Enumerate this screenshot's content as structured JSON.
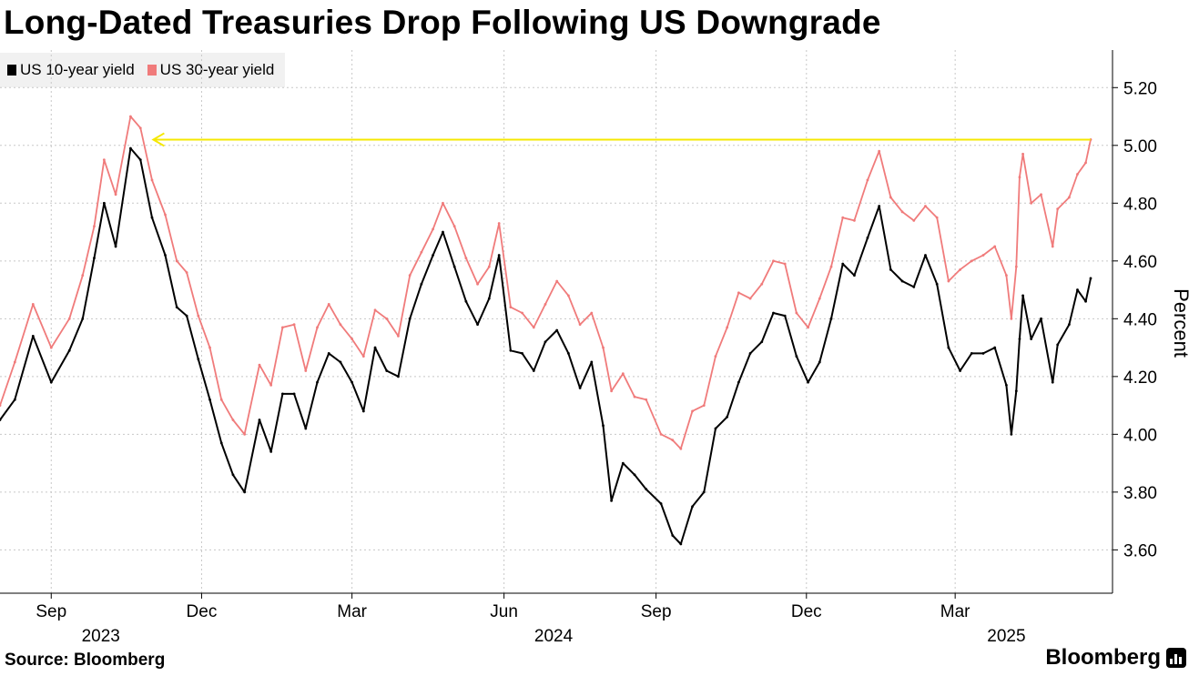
{
  "title": "Long-Dated Treasuries Drop Following US Downgrade",
  "source": "Source: Bloomberg",
  "brand": "Bloomberg",
  "colors": {
    "series_10y": "#000000",
    "series_30y": "#f07b7b",
    "reference_line": "#f5e800",
    "grid": "#c8c8c8"
  },
  "chart_data": {
    "type": "line",
    "title": "Long-Dated Treasuries Drop Following US Downgrade",
    "xlabel": "",
    "ylabel": "Percent",
    "ylim": [
      3.45,
      5.33
    ],
    "yticks": [
      3.6,
      3.8,
      4.0,
      4.2,
      4.4,
      4.6,
      4.8,
      5.0,
      5.2
    ],
    "ytick_labels": [
      "3.60",
      "3.80",
      "4.00",
      "4.20",
      "4.40",
      "4.60",
      "4.80",
      "5.00",
      "5.20"
    ],
    "xlim": [
      "2023-08-01",
      "2025-05-22"
    ],
    "xticks": [
      {
        "date": "2023-09-01",
        "label": "Sep"
      },
      {
        "date": "2023-12-01",
        "label": "Dec"
      },
      {
        "date": "2024-03-01",
        "label": "Mar"
      },
      {
        "date": "2024-06-01",
        "label": "Jun"
      },
      {
        "date": "2024-09-01",
        "label": "Sep"
      },
      {
        "date": "2024-12-01",
        "label": "Dec"
      },
      {
        "date": "2025-03-01",
        "label": "Mar"
      }
    ],
    "year_labels": [
      {
        "date": "2023-10-01",
        "label": "2023"
      },
      {
        "date": "2024-07-01",
        "label": "2024"
      },
      {
        "date": "2025-04-01",
        "label": "2025"
      }
    ],
    "series": [
      {
        "name": "US 10-year yield",
        "color": "#000000",
        "points": [
          [
            "2023-08-01",
            4.05
          ],
          [
            "2023-08-10",
            4.12
          ],
          [
            "2023-08-21",
            4.34
          ],
          [
            "2023-09-01",
            4.18
          ],
          [
            "2023-09-12",
            4.29
          ],
          [
            "2023-09-20",
            4.4
          ],
          [
            "2023-09-27",
            4.61
          ],
          [
            "2023-10-03",
            4.8
          ],
          [
            "2023-10-10",
            4.65
          ],
          [
            "2023-10-19",
            4.99
          ],
          [
            "2023-10-25",
            4.95
          ],
          [
            "2023-11-01",
            4.75
          ],
          [
            "2023-11-09",
            4.62
          ],
          [
            "2023-11-16",
            4.44
          ],
          [
            "2023-11-22",
            4.41
          ],
          [
            "2023-11-29",
            4.26
          ],
          [
            "2023-12-06",
            4.12
          ],
          [
            "2023-12-13",
            3.97
          ],
          [
            "2023-12-20",
            3.86
          ],
          [
            "2023-12-27",
            3.8
          ],
          [
            "2024-01-05",
            4.05
          ],
          [
            "2024-01-12",
            3.94
          ],
          [
            "2024-01-19",
            4.14
          ],
          [
            "2024-01-26",
            4.14
          ],
          [
            "2024-02-02",
            4.02
          ],
          [
            "2024-02-09",
            4.18
          ],
          [
            "2024-02-16",
            4.28
          ],
          [
            "2024-02-23",
            4.25
          ],
          [
            "2024-03-01",
            4.18
          ],
          [
            "2024-03-08",
            4.08
          ],
          [
            "2024-03-15",
            4.3
          ],
          [
            "2024-03-22",
            4.22
          ],
          [
            "2024-03-29",
            4.2
          ],
          [
            "2024-04-05",
            4.4
          ],
          [
            "2024-04-12",
            4.52
          ],
          [
            "2024-04-19",
            4.62
          ],
          [
            "2024-04-25",
            4.7
          ],
          [
            "2024-05-02",
            4.58
          ],
          [
            "2024-05-09",
            4.46
          ],
          [
            "2024-05-16",
            4.38
          ],
          [
            "2024-05-23",
            4.47
          ],
          [
            "2024-05-29",
            4.62
          ],
          [
            "2024-06-05",
            4.29
          ],
          [
            "2024-06-12",
            4.28
          ],
          [
            "2024-06-19",
            4.22
          ],
          [
            "2024-06-26",
            4.32
          ],
          [
            "2024-07-03",
            4.36
          ],
          [
            "2024-07-10",
            4.28
          ],
          [
            "2024-07-17",
            4.16
          ],
          [
            "2024-07-24",
            4.25
          ],
          [
            "2024-07-31",
            4.03
          ],
          [
            "2024-08-05",
            3.77
          ],
          [
            "2024-08-12",
            3.9
          ],
          [
            "2024-08-19",
            3.86
          ],
          [
            "2024-08-26",
            3.81
          ],
          [
            "2024-09-04",
            3.76
          ],
          [
            "2024-09-11",
            3.65
          ],
          [
            "2024-09-16",
            3.62
          ],
          [
            "2024-09-23",
            3.75
          ],
          [
            "2024-09-30",
            3.8
          ],
          [
            "2024-10-07",
            4.02
          ],
          [
            "2024-10-14",
            4.06
          ],
          [
            "2024-10-21",
            4.18
          ],
          [
            "2024-10-28",
            4.28
          ],
          [
            "2024-11-04",
            4.32
          ],
          [
            "2024-11-11",
            4.42
          ],
          [
            "2024-11-18",
            4.41
          ],
          [
            "2024-11-25",
            4.27
          ],
          [
            "2024-12-02",
            4.18
          ],
          [
            "2024-12-09",
            4.25
          ],
          [
            "2024-12-16",
            4.4
          ],
          [
            "2024-12-23",
            4.59
          ],
          [
            "2024-12-30",
            4.55
          ],
          [
            "2025-01-07",
            4.68
          ],
          [
            "2025-01-14",
            4.79
          ],
          [
            "2025-01-21",
            4.57
          ],
          [
            "2025-01-28",
            4.53
          ],
          [
            "2025-02-04",
            4.51
          ],
          [
            "2025-02-11",
            4.62
          ],
          [
            "2025-02-18",
            4.52
          ],
          [
            "2025-02-25",
            4.3
          ],
          [
            "2025-03-04",
            4.22
          ],
          [
            "2025-03-11",
            4.28
          ],
          [
            "2025-03-18",
            4.28
          ],
          [
            "2025-03-25",
            4.3
          ],
          [
            "2025-04-01",
            4.17
          ],
          [
            "2025-04-04",
            4.0
          ],
          [
            "2025-04-07",
            4.15
          ],
          [
            "2025-04-09",
            4.33
          ],
          [
            "2025-04-11",
            4.48
          ],
          [
            "2025-04-16",
            4.33
          ],
          [
            "2025-04-22",
            4.4
          ],
          [
            "2025-04-29",
            4.18
          ],
          [
            "2025-05-02",
            4.31
          ],
          [
            "2025-05-09",
            4.38
          ],
          [
            "2025-05-14",
            4.5
          ],
          [
            "2025-05-19",
            4.46
          ],
          [
            "2025-05-22",
            4.54
          ]
        ]
      },
      {
        "name": "US 30-year yield",
        "color": "#f07b7b",
        "points": [
          [
            "2023-08-01",
            4.1
          ],
          [
            "2023-08-10",
            4.25
          ],
          [
            "2023-08-21",
            4.45
          ],
          [
            "2023-09-01",
            4.3
          ],
          [
            "2023-09-12",
            4.4
          ],
          [
            "2023-09-20",
            4.55
          ],
          [
            "2023-09-27",
            4.72
          ],
          [
            "2023-10-03",
            4.95
          ],
          [
            "2023-10-10",
            4.83
          ],
          [
            "2023-10-19",
            5.1
          ],
          [
            "2023-10-25",
            5.06
          ],
          [
            "2023-11-01",
            4.88
          ],
          [
            "2023-11-09",
            4.76
          ],
          [
            "2023-11-16",
            4.6
          ],
          [
            "2023-11-22",
            4.56
          ],
          [
            "2023-11-29",
            4.41
          ],
          [
            "2023-12-06",
            4.3
          ],
          [
            "2023-12-13",
            4.12
          ],
          [
            "2023-12-20",
            4.05
          ],
          [
            "2023-12-27",
            4.0
          ],
          [
            "2024-01-05",
            4.24
          ],
          [
            "2024-01-12",
            4.17
          ],
          [
            "2024-01-19",
            4.37
          ],
          [
            "2024-01-26",
            4.38
          ],
          [
            "2024-02-02",
            4.22
          ],
          [
            "2024-02-09",
            4.37
          ],
          [
            "2024-02-16",
            4.45
          ],
          [
            "2024-02-23",
            4.38
          ],
          [
            "2024-03-01",
            4.33
          ],
          [
            "2024-03-08",
            4.27
          ],
          [
            "2024-03-15",
            4.43
          ],
          [
            "2024-03-22",
            4.4
          ],
          [
            "2024-03-29",
            4.34
          ],
          [
            "2024-04-05",
            4.55
          ],
          [
            "2024-04-12",
            4.63
          ],
          [
            "2024-04-19",
            4.71
          ],
          [
            "2024-04-25",
            4.8
          ],
          [
            "2024-05-02",
            4.72
          ],
          [
            "2024-05-09",
            4.61
          ],
          [
            "2024-05-16",
            4.52
          ],
          [
            "2024-05-23",
            4.58
          ],
          [
            "2024-05-29",
            4.73
          ],
          [
            "2024-06-05",
            4.44
          ],
          [
            "2024-06-12",
            4.42
          ],
          [
            "2024-06-19",
            4.37
          ],
          [
            "2024-06-26",
            4.45
          ],
          [
            "2024-07-03",
            4.53
          ],
          [
            "2024-07-10",
            4.48
          ],
          [
            "2024-07-17",
            4.38
          ],
          [
            "2024-07-24",
            4.42
          ],
          [
            "2024-07-31",
            4.3
          ],
          [
            "2024-08-05",
            4.15
          ],
          [
            "2024-08-12",
            4.21
          ],
          [
            "2024-08-19",
            4.13
          ],
          [
            "2024-08-26",
            4.12
          ],
          [
            "2024-09-04",
            4.0
          ],
          [
            "2024-09-11",
            3.98
          ],
          [
            "2024-09-16",
            3.95
          ],
          [
            "2024-09-23",
            4.08
          ],
          [
            "2024-09-30",
            4.1
          ],
          [
            "2024-10-07",
            4.27
          ],
          [
            "2024-10-14",
            4.37
          ],
          [
            "2024-10-21",
            4.49
          ],
          [
            "2024-10-28",
            4.47
          ],
          [
            "2024-11-04",
            4.52
          ],
          [
            "2024-11-11",
            4.6
          ],
          [
            "2024-11-18",
            4.59
          ],
          [
            "2024-11-25",
            4.42
          ],
          [
            "2024-12-02",
            4.37
          ],
          [
            "2024-12-09",
            4.47
          ],
          [
            "2024-12-16",
            4.58
          ],
          [
            "2024-12-23",
            4.75
          ],
          [
            "2024-12-30",
            4.74
          ],
          [
            "2025-01-07",
            4.88
          ],
          [
            "2025-01-14",
            4.98
          ],
          [
            "2025-01-21",
            4.82
          ],
          [
            "2025-01-28",
            4.77
          ],
          [
            "2025-02-04",
            4.74
          ],
          [
            "2025-02-11",
            4.79
          ],
          [
            "2025-02-18",
            4.75
          ],
          [
            "2025-02-25",
            4.53
          ],
          [
            "2025-03-04",
            4.57
          ],
          [
            "2025-03-11",
            4.6
          ],
          [
            "2025-03-18",
            4.62
          ],
          [
            "2025-03-25",
            4.65
          ],
          [
            "2025-04-01",
            4.55
          ],
          [
            "2025-04-04",
            4.4
          ],
          [
            "2025-04-07",
            4.58
          ],
          [
            "2025-04-09",
            4.89
          ],
          [
            "2025-04-11",
            4.97
          ],
          [
            "2025-04-16",
            4.8
          ],
          [
            "2025-04-22",
            4.83
          ],
          [
            "2025-04-29",
            4.65
          ],
          [
            "2025-05-02",
            4.78
          ],
          [
            "2025-05-09",
            4.82
          ],
          [
            "2025-05-14",
            4.9
          ],
          [
            "2025-05-19",
            4.94
          ],
          [
            "2025-05-22",
            5.02
          ]
        ]
      }
    ],
    "reference_line": {
      "value": 5.02,
      "from": "2023-10-19",
      "to": "2025-05-22",
      "arrow": "left"
    }
  }
}
